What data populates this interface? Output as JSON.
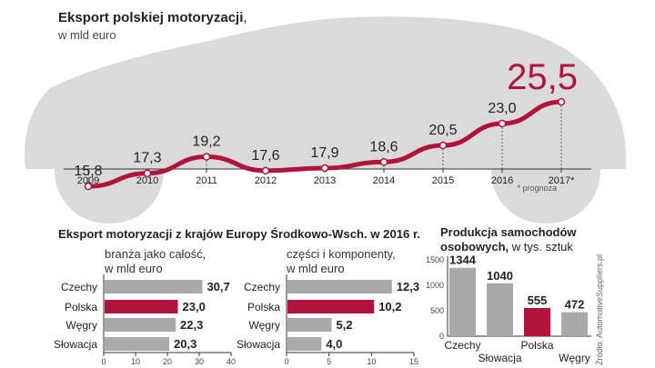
{
  "colors": {
    "accent": "#b0143c",
    "bar_gray": "#a9a9a9",
    "car_gray": "#dadada",
    "text": "#222222",
    "muted": "#555555"
  },
  "source": "Źródło: AutomotiveSuppliers.pl",
  "chart_data": [
    {
      "type": "line",
      "title": "Eksport polskiej motoryzacji",
      "title_suffix": ",",
      "subtitle": "w mld euro",
      "x": [
        "2009",
        "2010",
        "2011",
        "2012",
        "2013",
        "2014",
        "2015",
        "2016",
        "2017*"
      ],
      "values": [
        15.8,
        17.3,
        19.2,
        17.6,
        17.9,
        18.6,
        20.5,
        23.0,
        25.5
      ],
      "value_labels": [
        "15,8",
        "17,3",
        "19,2",
        "17,6",
        "17,9",
        "18,6",
        "20,5",
        "23,0",
        "25,5"
      ],
      "highlight_index": 8,
      "footnote": "* prognoza",
      "ylim": [
        13,
        27
      ],
      "background_icon": "car-silhouette"
    },
    {
      "heading": "Eksport motoryzacji z krajów Europy Środkowo-Wsch. w 2016 r.",
      "charts": [
        {
          "type": "bar",
          "orientation": "horizontal",
          "subtitle_line1": "branża jako całość,",
          "subtitle_line2": "w mld euro",
          "categories": [
            "Czechy",
            "Polska",
            "Węgry",
            "Słowacja"
          ],
          "values": [
            30.7,
            23.0,
            22.3,
            20.3
          ],
          "value_labels": [
            "30,7",
            "23,0",
            "22,3",
            "20,3"
          ],
          "highlight_category": "Polska",
          "xlim": [
            0,
            40
          ],
          "ticks": [
            "0",
            "10",
            "20",
            "30",
            "40"
          ]
        },
        {
          "type": "bar",
          "orientation": "horizontal",
          "subtitle_line1": "części i komponenty,",
          "subtitle_line2": "w mld euro",
          "categories": [
            "Czechy",
            "Polska",
            "Węgry",
            "Słowacja"
          ],
          "values": [
            12.3,
            10.2,
            5.2,
            4.0
          ],
          "value_labels": [
            "12,3",
            "10,2",
            "5,2",
            "4,0"
          ],
          "highlight_category": "Polska",
          "xlim": [
            0,
            15
          ],
          "ticks": [
            "0",
            "5",
            "10",
            "15"
          ]
        }
      ]
    },
    {
      "type": "bar",
      "orientation": "vertical",
      "title": "Produkcja samochodów",
      "title_line2": "osobowych,",
      "subtitle": " w tys. sztuk",
      "categories": [
        "Czechy",
        "Słowacja",
        "Polska",
        "Węgry"
      ],
      "values": [
        1344,
        1040,
        555,
        472
      ],
      "value_labels": [
        "1344",
        "1040",
        "555",
        "472"
      ],
      "highlight_category": "Polska",
      "ylim": [
        0,
        1500
      ],
      "yticks": [
        "0",
        "500",
        "1000",
        "1500"
      ]
    }
  ]
}
